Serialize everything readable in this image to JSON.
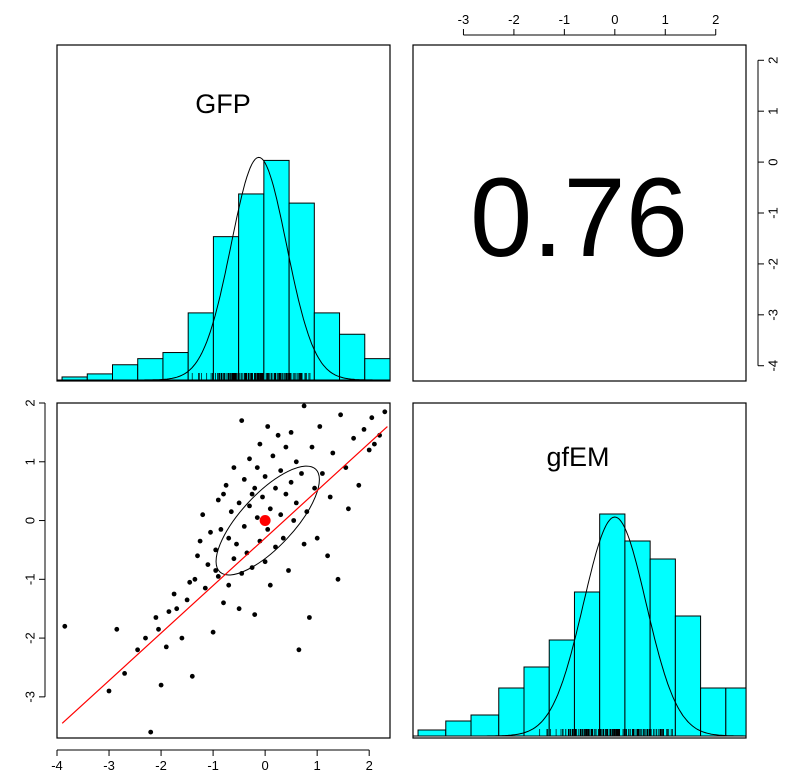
{
  "chart_data": [
    {
      "panel": "diag-1",
      "type": "histogram",
      "title": "GFP",
      "bins": [
        {
          "x0": -3.9,
          "x1": -3.4,
          "density": 0.01
        },
        {
          "x0": -3.4,
          "x1": -2.9,
          "density": 0.02
        },
        {
          "x0": -2.9,
          "x1": -2.4,
          "density": 0.05
        },
        {
          "x0": -2.4,
          "x1": -1.9,
          "density": 0.07
        },
        {
          "x0": -1.9,
          "x1": -1.4,
          "density": 0.09
        },
        {
          "x0": -1.4,
          "x1": -0.9,
          "density": 0.22
        },
        {
          "x0": -0.9,
          "x1": -0.4,
          "density": 0.47
        },
        {
          "x0": -0.4,
          "x1": 0.1,
          "density": 0.61
        },
        {
          "x0": 0.1,
          "x1": 0.6,
          "density": 0.72
        },
        {
          "x0": 0.6,
          "x1": 1.1,
          "density": 0.58
        },
        {
          "x0": 1.1,
          "x1": 1.6,
          "density": 0.22
        },
        {
          "x0": 1.6,
          "x1": 2.1,
          "density": 0.15
        },
        {
          "x0": 2.1,
          "x1": 2.6,
          "density": 0.07
        }
      ],
      "density_curve": {
        "mean": 0.0,
        "sd": 0.55,
        "peak": 0.73
      },
      "xlim": [
        -4,
        2.6
      ]
    },
    {
      "panel": "upper-right",
      "type": "text",
      "correlation": "0.76"
    },
    {
      "panel": "lower-left",
      "type": "scatter",
      "xlim": [
        -4,
        2.4
      ],
      "ylim": [
        -3.7,
        2
      ],
      "x_ticks": [
        "-4",
        "-3",
        "-2",
        "-1",
        "0",
        "1",
        "2"
      ],
      "y_ticks": [
        "-3",
        "-2",
        "-1",
        "0",
        "1",
        "2"
      ],
      "regression_line": {
        "x": [
          -3.9,
          2.35
        ],
        "y": [
          -3.45,
          1.6
        ],
        "color": "#ff0000"
      },
      "centroid": {
        "x": 0.0,
        "y": 0.0,
        "color": "#ff0000"
      },
      "ellipse": {
        "cx": 0.05,
        "cy": 0.0,
        "rx": 1.35,
        "ry": 0.45,
        "angle_deg": -47
      },
      "points": [
        [
          -3.85,
          -1.8
        ],
        [
          -3.0,
          -2.9
        ],
        [
          -2.85,
          -1.85
        ],
        [
          -2.7,
          -2.6
        ],
        [
          -2.45,
          -2.2
        ],
        [
          -2.3,
          -2.0
        ],
        [
          -2.2,
          -3.6
        ],
        [
          -2.1,
          -1.65
        ],
        [
          -2.05,
          -1.85
        ],
        [
          -2.0,
          -2.8
        ],
        [
          -1.9,
          -2.15
        ],
        [
          -1.85,
          -1.55
        ],
        [
          -1.75,
          -1.25
        ],
        [
          -1.7,
          -1.5
        ],
        [
          -1.6,
          -2.0
        ],
        [
          -1.5,
          -1.35
        ],
        [
          -1.45,
          -1.05
        ],
        [
          -1.4,
          -2.65
        ],
        [
          -1.35,
          -1.0
        ],
        [
          -1.3,
          -0.6
        ],
        [
          -1.25,
          -0.35
        ],
        [
          -1.2,
          0.1
        ],
        [
          -1.15,
          -1.15
        ],
        [
          -1.1,
          -0.75
        ],
        [
          -1.05,
          -0.2
        ],
        [
          -1.0,
          -1.9
        ],
        [
          -0.95,
          -0.5
        ],
        [
          -0.9,
          0.35
        ],
        [
          -0.9,
          -0.95
        ],
        [
          -0.85,
          -0.15
        ],
        [
          -0.8,
          0.45
        ],
        [
          -0.8,
          -1.4
        ],
        [
          -0.75,
          0.6
        ],
        [
          -0.7,
          -0.3
        ],
        [
          -0.7,
          -1.1
        ],
        [
          -0.65,
          0.15
        ],
        [
          -0.6,
          -0.65
        ],
        [
          -0.6,
          0.9
        ],
        [
          -0.55,
          -0.4
        ],
        [
          -0.5,
          0.3
        ],
        [
          -0.5,
          -1.5
        ],
        [
          -0.45,
          1.7
        ],
        [
          -0.45,
          -0.9
        ],
        [
          -0.4,
          0.7
        ],
        [
          -0.4,
          -0.1
        ],
        [
          -0.35,
          -0.55
        ],
        [
          -0.3,
          1.05
        ],
        [
          -0.3,
          0.25
        ],
        [
          -0.25,
          -0.8
        ],
        [
          -0.2,
          0.55
        ],
        [
          -0.2,
          -1.6
        ],
        [
          -0.15,
          0.9
        ],
        [
          -0.15,
          0.05
        ],
        [
          -0.1,
          -0.35
        ],
        [
          -0.1,
          1.3
        ],
        [
          -0.05,
          0.4
        ],
        [
          0.0,
          -0.7
        ],
        [
          0.0,
          0.75
        ],
        [
          0.05,
          1.6
        ],
        [
          0.05,
          -0.15
        ],
        [
          0.1,
          0.2
        ],
        [
          0.1,
          -1.1
        ],
        [
          0.15,
          1.1
        ],
        [
          0.2,
          0.55
        ],
        [
          0.2,
          -0.45
        ],
        [
          0.25,
          1.45
        ],
        [
          0.3,
          0.1
        ],
        [
          0.3,
          0.85
        ],
        [
          0.35,
          -0.3
        ],
        [
          0.4,
          1.25
        ],
        [
          0.4,
          0.45
        ],
        [
          0.45,
          -0.85
        ],
        [
          0.5,
          0.65
        ],
        [
          0.5,
          1.5
        ],
        [
          0.55,
          0.0
        ],
        [
          0.6,
          1.0
        ],
        [
          0.6,
          0.3
        ],
        [
          0.65,
          -2.2
        ],
        [
          0.7,
          0.8
        ],
        [
          0.75,
          1.95
        ],
        [
          0.75,
          -0.4
        ],
        [
          0.8,
          0.15
        ],
        [
          0.85,
          -1.65
        ],
        [
          0.9,
          1.25
        ],
        [
          0.95,
          0.55
        ],
        [
          1.0,
          -0.3
        ],
        [
          1.05,
          1.6
        ],
        [
          1.1,
          0.8
        ],
        [
          1.2,
          -0.6
        ],
        [
          1.25,
          0.4
        ],
        [
          1.3,
          1.15
        ],
        [
          1.4,
          -1.0
        ],
        [
          1.45,
          1.8
        ],
        [
          1.55,
          0.9
        ],
        [
          1.6,
          0.2
        ],
        [
          1.7,
          1.4
        ],
        [
          1.8,
          0.6
        ],
        [
          1.9,
          1.55
        ],
        [
          2.0,
          1.2
        ],
        [
          2.05,
          1.75
        ],
        [
          2.1,
          1.3
        ],
        [
          2.2,
          1.45
        ],
        [
          2.3,
          1.85
        ],
        [
          -0.95,
          -0.85
        ],
        [
          -0.25,
          0.45
        ]
      ]
    },
    {
      "panel": "diag-2",
      "type": "histogram",
      "title": "gfEM",
      "bins": [
        {
          "x0": -3.9,
          "x1": -3.35,
          "density": 0.02
        },
        {
          "x0": -3.35,
          "x1": -2.85,
          "density": 0.05
        },
        {
          "x0": -2.85,
          "x1": -2.3,
          "density": 0.07
        },
        {
          "x0": -2.3,
          "x1": -1.8,
          "density": 0.16
        },
        {
          "x0": -1.8,
          "x1": -1.3,
          "density": 0.23
        },
        {
          "x0": -1.3,
          "x1": -0.8,
          "density": 0.32
        },
        {
          "x0": -0.8,
          "x1": -0.3,
          "density": 0.48
        },
        {
          "x0": -0.3,
          "x1": 0.2,
          "density": 0.74
        },
        {
          "x0": 0.2,
          "x1": 0.7,
          "density": 0.65
        },
        {
          "x0": 0.7,
          "x1": 1.2,
          "density": 0.59
        },
        {
          "x0": 1.2,
          "x1": 1.7,
          "density": 0.4
        },
        {
          "x0": 1.7,
          "x1": 2.2,
          "density": 0.16
        },
        {
          "x0": 2.2,
          "x1": 2.6,
          "density": 0.16
        }
      ],
      "density_curve": {
        "mean": 0.0,
        "sd": 0.62,
        "peak": 0.73
      },
      "x_ticks": [
        "-3",
        "-2",
        "-1",
        "0",
        "1",
        "2"
      ],
      "y_ticks": [
        "2",
        "1",
        "0",
        "-1",
        "-2",
        "-3",
        "-4"
      ]
    }
  ],
  "colors": {
    "bar_fill": "#00ffff",
    "line": "#000000",
    "accent": "#ff0000"
  }
}
